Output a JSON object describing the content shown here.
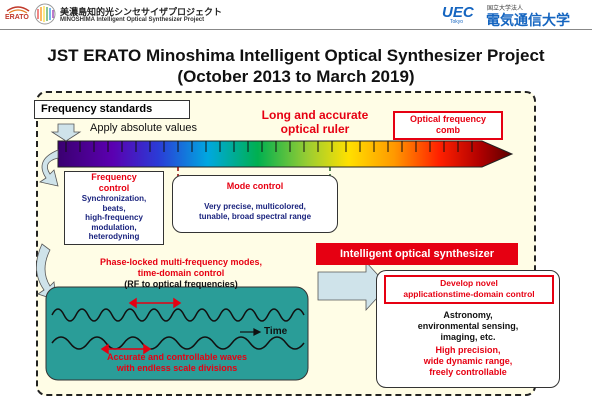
{
  "header": {
    "logo_text": "ERATO",
    "project_jp": "美濃島知的光シンセサイザプロジェクト",
    "project_en": "MINOSHIMA Intelligent Optical Synthesizer Project",
    "uec_logo": "UEC",
    "uec_sub": "Tokyo",
    "univ_type_jp": "国立大学法人",
    "univ_name_jp": "電気通信大学"
  },
  "title": {
    "line1": "JST ERATO Minoshima Intelligent Optical Synthesizer Project",
    "line2": "(October 2013 to March 2019)"
  },
  "diagram": {
    "freq_standards": "Frequency standards",
    "apply_values": "Apply absolute values",
    "ruler_line1": "Long and accurate",
    "ruler_line2": "optical ruler",
    "comb_line1": "Optical frequency",
    "comb_line2": "comb",
    "freq_control": {
      "title1": "Frequency",
      "title2": "control",
      "lines": [
        "Synchronization,",
        "beats,",
        "high-frequency",
        "modulation,",
        "heterodyning"
      ]
    },
    "mode_control": {
      "title": "Mode control",
      "line1": "Very precise, multicolored,",
      "line2": "tunable, broad spectral range"
    },
    "intelligent": "Intelligent optical synthesizer",
    "phase": {
      "line1": "Phase-locked multi-frequency modes,",
      "line2": "time-domain control",
      "line3": "(RF to optical frequencies)"
    },
    "time_label": "Time",
    "waves": {
      "line1": "Accurate and controllable waves",
      "line2": "with endless scale divisions"
    },
    "develop": {
      "line1": "Develop novel",
      "line2": "applicationstime-domain control"
    },
    "apps": {
      "line1": "Astronomy,",
      "line2": "environmental sensing,",
      "line3": "imaging, etc."
    },
    "precision": {
      "line1": "High precision,",
      "line2": "wide dynamic range,",
      "line3": "freely controllable"
    }
  },
  "colors": {
    "accent_red": "#e60012",
    "text_navy": "#1a237e",
    "panel_fill": "#fffde6",
    "wave_box_fill": "#2a9d98",
    "arrow_fill": "#cfe3ea"
  }
}
